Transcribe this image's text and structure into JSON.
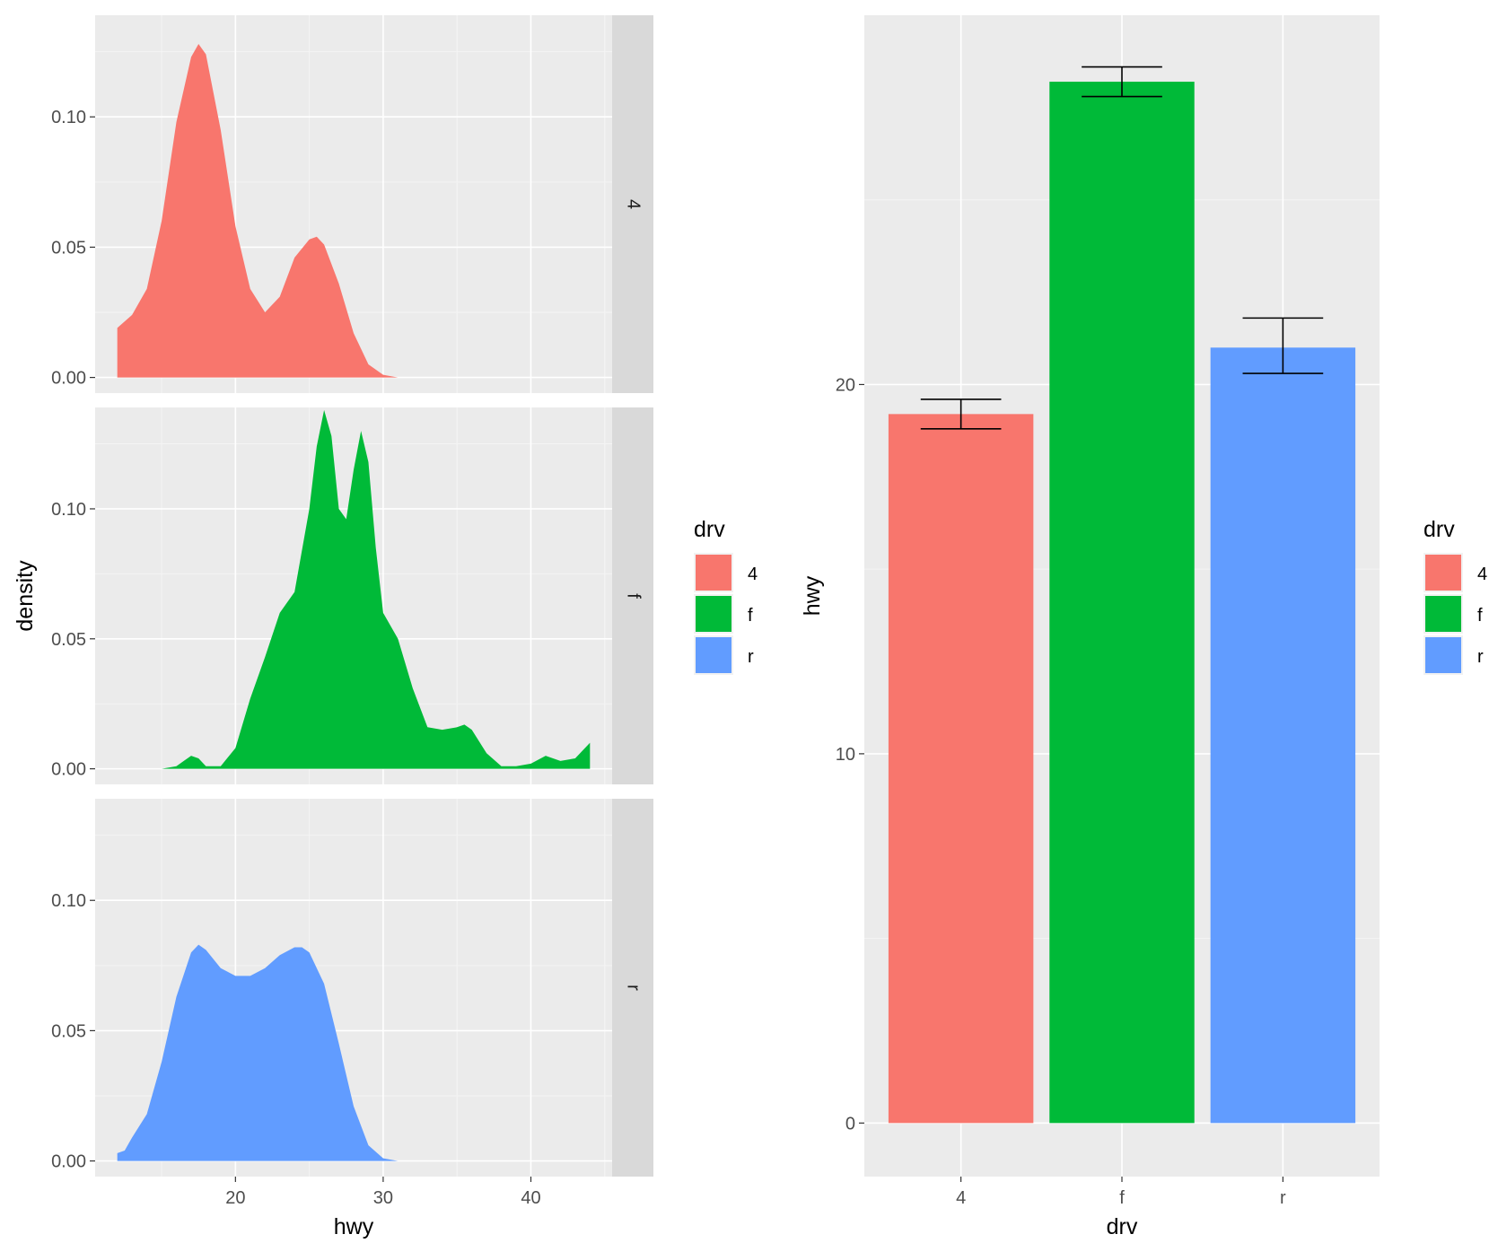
{
  "chart_data": [
    {
      "type": "area",
      "subtype": "density-faceted",
      "title": "",
      "xlabel": "hwy",
      "ylabel": "density",
      "xlim": [
        10.5,
        45.5
      ],
      "ylim": [
        -0.006,
        0.139
      ],
      "xticks": [
        20,
        30,
        40
      ],
      "yticks": [
        0.0,
        0.05,
        0.1
      ],
      "ytick_labels": [
        "0.00",
        "0.05",
        "0.10"
      ],
      "grid": true,
      "facets": [
        {
          "strip": "4",
          "color": "#F8766D",
          "x": [
            12,
            13,
            14,
            15,
            16,
            17,
            17.5,
            18,
            19,
            20,
            21,
            22,
            23,
            24,
            25,
            25.5,
            26,
            27,
            28,
            29,
            30,
            31
          ],
          "y": [
            0.019,
            0.024,
            0.034,
            0.06,
            0.098,
            0.123,
            0.128,
            0.124,
            0.095,
            0.058,
            0.034,
            0.025,
            0.031,
            0.046,
            0.053,
            0.054,
            0.051,
            0.036,
            0.017,
            0.005,
            0.001,
            0.0
          ]
        },
        {
          "strip": "f",
          "color": "#00BA38",
          "x": [
            14,
            15,
            16,
            16.5,
            17,
            17.5,
            18,
            19,
            20,
            21,
            22,
            23,
            24,
            25,
            25.5,
            26,
            26.5,
            27,
            27.5,
            28,
            28.5,
            29,
            29.5,
            30,
            31,
            32,
            33,
            34,
            35,
            35.5,
            36,
            37,
            38,
            39,
            40,
            41,
            42,
            43,
            44
          ],
          "y": [
            0.0,
            0.0,
            0.001,
            0.003,
            0.005,
            0.004,
            0.001,
            0.001,
            0.008,
            0.027,
            0.043,
            0.06,
            0.068,
            0.1,
            0.124,
            0.138,
            0.128,
            0.1,
            0.096,
            0.115,
            0.13,
            0.118,
            0.085,
            0.06,
            0.05,
            0.031,
            0.016,
            0.015,
            0.016,
            0.017,
            0.015,
            0.006,
            0.001,
            0.001,
            0.002,
            0.005,
            0.003,
            0.004,
            0.01
          ]
        },
        {
          "strip": "r",
          "color": "#619CFF",
          "x": [
            12,
            12.5,
            13,
            14,
            15,
            16,
            17,
            17.5,
            18,
            19,
            20,
            21,
            22,
            23,
            24,
            24.5,
            25,
            26,
            27,
            28,
            29,
            30,
            31,
            32
          ],
          "y": [
            0.003,
            0.004,
            0.009,
            0.018,
            0.038,
            0.063,
            0.08,
            0.083,
            0.081,
            0.074,
            0.071,
            0.071,
            0.074,
            0.079,
            0.082,
            0.082,
            0.08,
            0.068,
            0.045,
            0.021,
            0.006,
            0.001,
            0.0,
            0.0
          ]
        }
      ],
      "legend": {
        "title": "drv",
        "position": "right",
        "entries": [
          {
            "label": "4",
            "color": "#F8766D"
          },
          {
            "label": "f",
            "color": "#00BA38"
          },
          {
            "label": "r",
            "color": "#619CFF"
          }
        ]
      }
    },
    {
      "type": "bar",
      "subtype": "bar-with-errorbars",
      "title": "",
      "xlabel": "drv",
      "ylabel": "hwy",
      "categories": [
        "4",
        "f",
        "r"
      ],
      "values": [
        19.2,
        28.2,
        21.0
      ],
      "error_low": [
        18.8,
        27.8,
        20.3
      ],
      "error_high": [
        19.6,
        28.6,
        21.8
      ],
      "colors": [
        "#F8766D",
        "#00BA38",
        "#619CFF"
      ],
      "ylim": [
        -1.45,
        30.0
      ],
      "yticks": [
        0,
        10,
        20
      ],
      "ytick_labels": [
        "0",
        "10",
        "20"
      ],
      "grid": true,
      "legend": {
        "title": "drv",
        "position": "right",
        "entries": [
          {
            "label": "4",
            "color": "#F8766D"
          },
          {
            "label": "f",
            "color": "#00BA38"
          },
          {
            "label": "r",
            "color": "#619CFF"
          }
        ]
      }
    }
  ]
}
